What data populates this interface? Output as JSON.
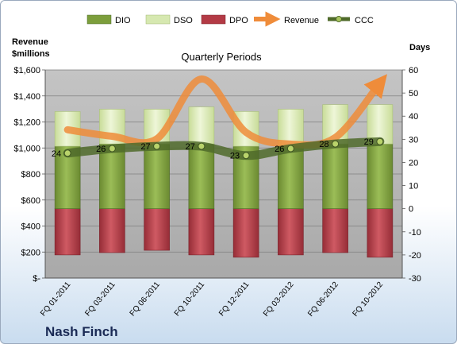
{
  "chart_data": {
    "type": "bar",
    "title": "Quarterly Periods",
    "company": "Nash Finch",
    "y_left_label": "Revenue\n$millions",
    "y_right_label": "Days",
    "y_left_ticks": [
      "$-",
      "$200",
      "$400",
      "$600",
      "$800",
      "$1,000",
      "$1,200",
      "$1,400",
      "$1,600"
    ],
    "y_left_range": [
      0,
      1600
    ],
    "y_right_ticks": [
      "-30",
      "-20",
      "-10",
      "0",
      "10",
      "20",
      "30",
      "40",
      "50",
      "60"
    ],
    "y_right_range": [
      -30,
      60
    ],
    "categories": [
      "FQ 01-2011",
      "FQ 03-2011",
      "FQ 06-2011",
      "FQ 10-2011",
      "FQ 12-2011",
      "FQ 03-2012",
      "FQ 06-2012",
      "FQ 10-2012"
    ],
    "legend": [
      "DIO",
      "DSO",
      "DPO",
      "Revenue",
      "CCC"
    ],
    "legend_position": "top",
    "series": [
      {
        "name": "DIO",
        "axis": "right",
        "values": [
          27,
          28,
          28,
          28,
          27,
          27,
          28,
          28
        ]
      },
      {
        "name": "DSO",
        "axis": "right",
        "values": [
          15,
          15,
          15,
          16,
          15,
          16,
          17,
          17
        ]
      },
      {
        "name": "DPO",
        "axis": "right",
        "values": [
          -20,
          -19,
          -18,
          -20,
          -21,
          -20,
          -19,
          -21
        ]
      },
      {
        "name": "Revenue",
        "axis": "left",
        "values": [
          1140,
          1090,
          1070,
          1530,
          1120,
          1030,
          1080,
          1500
        ]
      },
      {
        "name": "CCC",
        "axis": "right",
        "values": [
          24,
          26,
          27,
          27,
          23,
          26,
          28,
          29
        ]
      }
    ],
    "ccc_labels": [
      "24",
      "26",
      "27",
      "27",
      "23",
      "26",
      "28",
      "29"
    ],
    "colors": {
      "DIO": "#7c9e3c",
      "DSO": "#d6e8b0",
      "DPO": "#b33a45",
      "Revenue": "#ef8c3a",
      "CCC": "#4f6a2a",
      "plot_bg": "#b8b8b8"
    },
    "grid": true
  }
}
